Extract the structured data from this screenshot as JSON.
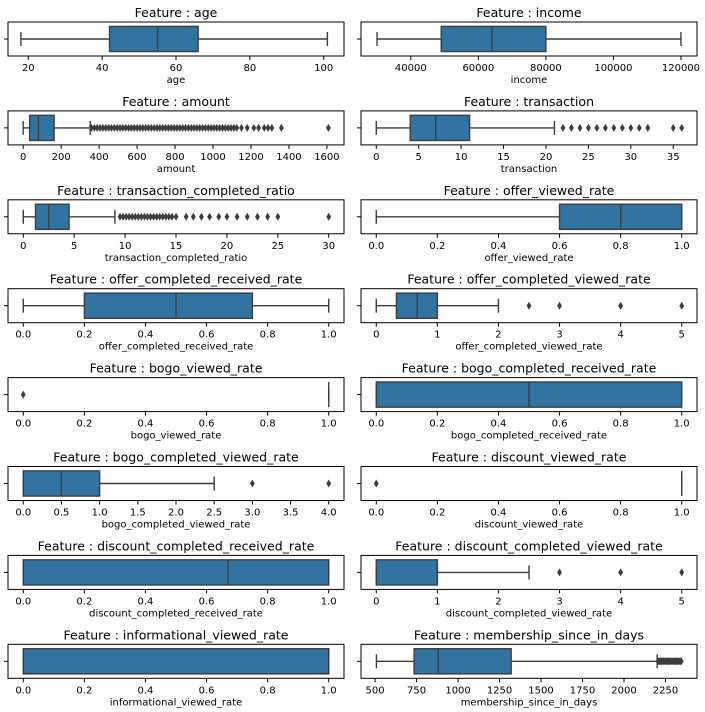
{
  "colors": {
    "box_fill": "#3274a1",
    "line": "#3d3d3d",
    "flier": "#3d3d3d",
    "axis": "#000000"
  },
  "chart_data": [
    {
      "type": "boxplot",
      "title": "Feature : age",
      "xlabel": "age",
      "xlim": [
        14.5,
        105.5
      ],
      "ticks": [
        20,
        40,
        60,
        80,
        100
      ],
      "tick_labels": [
        "20",
        "40",
        "60",
        "80",
        "100"
      ],
      "whisker_low": 18,
      "q1": 42,
      "median": 55,
      "q3": 66,
      "whisker_high": 101,
      "fliers": []
    },
    {
      "type": "boxplot",
      "title": "Feature : income",
      "xlabel": "income",
      "xlim": [
        25250,
        124750
      ],
      "ticks": [
        40000,
        60000,
        80000,
        100000,
        120000
      ],
      "tick_labels": [
        "40000",
        "60000",
        "80000",
        "100000",
        "120000"
      ],
      "whisker_low": 30000,
      "q1": 49000,
      "median": 64000,
      "q3": 80000,
      "whisker_high": 120000,
      "fliers": []
    },
    {
      "type": "boxplot",
      "title": "Feature : amount",
      "xlabel": "amount",
      "xlim": [
        -80,
        1690
      ],
      "ticks": [
        0,
        200,
        400,
        600,
        800,
        1000,
        1200,
        1400,
        1600
      ],
      "tick_labels": [
        "0",
        "200",
        "400",
        "600",
        "800",
        "1000",
        "1200",
        "1400",
        "1600"
      ],
      "whisker_low": 0,
      "q1": 34,
      "median": 80,
      "q3": 163,
      "whisker_high": 353,
      "fliers": [
        360,
        375,
        390,
        405,
        420,
        435,
        450,
        465,
        480,
        495,
        510,
        525,
        540,
        555,
        570,
        585,
        600,
        615,
        630,
        645,
        660,
        675,
        690,
        705,
        720,
        735,
        750,
        765,
        780,
        795,
        810,
        825,
        840,
        855,
        870,
        885,
        900,
        915,
        930,
        945,
        960,
        975,
        990,
        1005,
        1020,
        1035,
        1050,
        1065,
        1080,
        1095,
        1110,
        1125,
        1150,
        1180,
        1215,
        1240,
        1270,
        1290,
        1310,
        1360,
        1608
      ]
    },
    {
      "type": "boxplot",
      "title": "Feature : transaction",
      "xlabel": "transaction",
      "xlim": [
        -1.8,
        37.8
      ],
      "ticks": [
        0,
        5,
        10,
        15,
        20,
        25,
        30,
        35
      ],
      "tick_labels": [
        "0",
        "5",
        "10",
        "15",
        "20",
        "25",
        "30",
        "35"
      ],
      "whisker_low": 0,
      "q1": 4,
      "median": 7,
      "q3": 11,
      "whisker_high": 21,
      "fliers": [
        22,
        23,
        24,
        25,
        26,
        27,
        28,
        29,
        30,
        31,
        32,
        35,
        36
      ]
    },
    {
      "type": "boxplot",
      "title": "Feature : transaction_completed_ratio",
      "xlabel": "transaction_completed_ratio",
      "xlim": [
        -1.5,
        31.5
      ],
      "ticks": [
        0,
        5,
        10,
        15,
        20,
        25,
        30
      ],
      "tick_labels": [
        "0",
        "5",
        "10",
        "15",
        "20",
        "25",
        "30"
      ],
      "whisker_low": 0,
      "q1": 1.2,
      "median": 2.5,
      "q3": 4.5,
      "whisker_high": 9,
      "fliers": [
        9.5,
        9.8,
        10.1,
        10.4,
        10.7,
        11,
        11.3,
        11.6,
        11.9,
        12.2,
        12.5,
        12.8,
        13.1,
        13.4,
        13.7,
        14,
        14.3,
        14.6,
        15,
        16,
        16.7,
        17.5,
        18.3,
        19.2,
        20,
        21,
        22,
        23,
        24,
        25,
        30
      ]
    },
    {
      "type": "boxplot",
      "title": "Feature : offer_viewed_rate",
      "xlabel": "offer_viewed_rate",
      "xlim": [
        -0.05,
        1.05
      ],
      "ticks": [
        0,
        0.2,
        0.4,
        0.6,
        0.8,
        1.0
      ],
      "tick_labels": [
        "0.0",
        "0.2",
        "0.4",
        "0.6",
        "0.8",
        "1.0"
      ],
      "whisker_low": 0,
      "q1": 0.6,
      "median": 0.8,
      "q3": 1.0,
      "whisker_high": 1.0,
      "fliers": []
    },
    {
      "type": "boxplot",
      "title": "Feature : offer_completed_received_rate",
      "xlabel": "offer_completed_received_rate",
      "xlim": [
        -0.05,
        1.05
      ],
      "ticks": [
        0,
        0.2,
        0.4,
        0.6,
        0.8,
        1.0
      ],
      "tick_labels": [
        "0.0",
        "0.2",
        "0.4",
        "0.6",
        "0.8",
        "1.0"
      ],
      "whisker_low": 0,
      "q1": 0.2,
      "median": 0.5,
      "q3": 0.75,
      "whisker_high": 1.0,
      "fliers": []
    },
    {
      "type": "boxplot",
      "title": "Feature : offer_completed_viewed_rate",
      "xlabel": "offer_completed_viewed_rate",
      "xlim": [
        -0.25,
        5.25
      ],
      "ticks": [
        0,
        1,
        2,
        3,
        4,
        5
      ],
      "tick_labels": [
        "0",
        "1",
        "2",
        "3",
        "4",
        "5"
      ],
      "whisker_low": 0,
      "q1": 0.33,
      "median": 0.67,
      "q3": 1.0,
      "whisker_high": 2.0,
      "fliers": [
        2.5,
        3,
        4,
        5
      ]
    },
    {
      "type": "boxplot",
      "title": "Feature : bogo_viewed_rate",
      "xlabel": "bogo_viewed_rate",
      "xlim": [
        -0.05,
        1.05
      ],
      "ticks": [
        0,
        0.2,
        0.4,
        0.6,
        0.8,
        1.0
      ],
      "tick_labels": [
        "0.0",
        "0.2",
        "0.4",
        "0.6",
        "0.8",
        "1.0"
      ],
      "whisker_low": 1.0,
      "q1": 1.0,
      "median": 1.0,
      "q3": 1.0,
      "whisker_high": 1.0,
      "fliers": [
        0
      ]
    },
    {
      "type": "boxplot",
      "title": "Feature : bogo_completed_received_rate",
      "xlabel": "bogo_completed_received_rate",
      "xlim": [
        -0.05,
        1.05
      ],
      "ticks": [
        0,
        0.2,
        0.4,
        0.6,
        0.8,
        1.0
      ],
      "tick_labels": [
        "0.0",
        "0.2",
        "0.4",
        "0.6",
        "0.8",
        "1.0"
      ],
      "whisker_low": 0,
      "q1": 0,
      "median": 0.5,
      "q3": 1.0,
      "whisker_high": 1.0,
      "fliers": []
    },
    {
      "type": "boxplot",
      "title": "Feature : bogo_completed_viewed_rate",
      "xlabel": "bogo_completed_viewed_rate",
      "xlim": [
        -0.2,
        4.2
      ],
      "ticks": [
        0,
        0.5,
        1,
        1.5,
        2,
        2.5,
        3,
        3.5,
        4
      ],
      "tick_labels": [
        "0.0",
        "0.5",
        "1.0",
        "1.5",
        "2.0",
        "2.5",
        "3.0",
        "3.5",
        "4.0"
      ],
      "whisker_low": 0,
      "q1": 0,
      "median": 0.5,
      "q3": 1.0,
      "whisker_high": 2.5,
      "fliers": [
        3,
        4
      ]
    },
    {
      "type": "boxplot",
      "title": "Feature : discount_viewed_rate",
      "xlabel": "discount_viewed_rate",
      "xlim": [
        -0.05,
        1.05
      ],
      "ticks": [
        0,
        0.2,
        0.4,
        0.6,
        0.8,
        1.0
      ],
      "tick_labels": [
        "0.0",
        "0.2",
        "0.4",
        "0.6",
        "0.8",
        "1.0"
      ],
      "whisker_low": 1.0,
      "q1": 1.0,
      "median": 1.0,
      "q3": 1.0,
      "whisker_high": 1.0,
      "fliers": [
        0
      ]
    },
    {
      "type": "boxplot",
      "title": "Feature : discount_completed_received_rate",
      "xlabel": "discount_completed_received_rate",
      "xlim": [
        -0.05,
        1.05
      ],
      "ticks": [
        0,
        0.2,
        0.4,
        0.6,
        0.8,
        1.0
      ],
      "tick_labels": [
        "0.0",
        "0.2",
        "0.4",
        "0.6",
        "0.8",
        "1.0"
      ],
      "whisker_low": 0,
      "q1": 0,
      "median": 0.67,
      "q3": 1.0,
      "whisker_high": 1.0,
      "fliers": []
    },
    {
      "type": "boxplot",
      "title": "Feature : discount_completed_viewed_rate",
      "xlabel": "discount_completed_viewed_rate",
      "xlim": [
        -0.25,
        5.25
      ],
      "ticks": [
        0,
        1,
        2,
        3,
        4,
        5
      ],
      "tick_labels": [
        "0",
        "1",
        "2",
        "3",
        "4",
        "5"
      ],
      "whisker_low": 0,
      "q1": 0,
      "median": 1.0,
      "q3": 1.0,
      "whisker_high": 2.5,
      "fliers": [
        3,
        4,
        5
      ]
    },
    {
      "type": "boxplot",
      "title": "Feature : informational_viewed_rate",
      "xlabel": "informational_viewed_rate",
      "xlim": [
        -0.05,
        1.05
      ],
      "ticks": [
        0,
        0.2,
        0.4,
        0.6,
        0.8,
        1.0
      ],
      "tick_labels": [
        "0.0",
        "0.2",
        "0.4",
        "0.6",
        "0.8",
        "1.0"
      ],
      "whisker_low": 0,
      "q1": 0,
      "median": 1.0,
      "q3": 1.0,
      "whisker_high": 1.0,
      "fliers": []
    },
    {
      "type": "boxplot",
      "title": "Feature : membership_since_in_days",
      "xlabel": "membership_since_in_days",
      "xlim": [
        415,
        2440
      ],
      "ticks": [
        500,
        750,
        1000,
        1250,
        1500,
        1750,
        2000,
        2250
      ],
      "tick_labels": [
        "500",
        "750",
        "1000",
        "1250",
        "1500",
        "1750",
        "2000",
        "2250"
      ],
      "whisker_low": 508,
      "q1": 735,
      "median": 880,
      "q3": 1320,
      "whisker_high": 2200,
      "fliers": [
        2205,
        2212,
        2219,
        2226,
        2233,
        2240,
        2247,
        2254,
        2261,
        2268,
        2275,
        2282,
        2289,
        2296,
        2303,
        2310,
        2317,
        2324,
        2331,
        2338,
        2345
      ]
    }
  ]
}
